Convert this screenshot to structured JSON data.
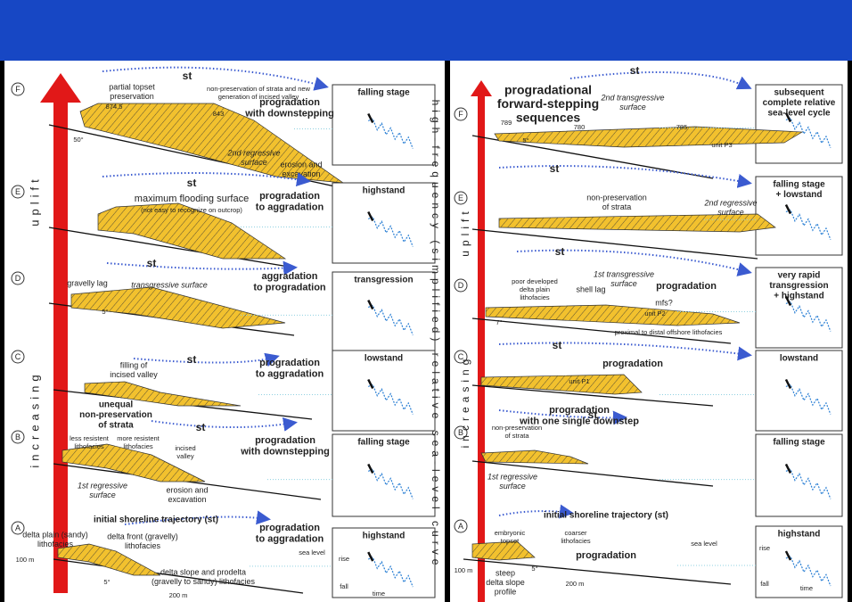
{
  "left_panel": {
    "vertical_label": "high-frequency (simplified) relative sea-level curve",
    "uplift_label": [
      "increasing",
      "uplift"
    ],
    "stages": [
      {
        "letter": "F",
        "box": [
          "falling stage"
        ],
        "process": [
          "progradation",
          "with downstepping"
        ],
        "notes": [
          [
            "st"
          ],
          [
            "partial topset",
            "preservation"
          ],
          [
            "non-preservation of strata and new",
            "generation of incised valley"
          ],
          [
            "874.5"
          ],
          [
            "843"
          ],
          [
            "50°"
          ],
          [
            "2nd regressive",
            "surface"
          ],
          [
            "erosion and",
            "excavation"
          ]
        ]
      },
      {
        "letter": "E",
        "box": [
          "highstand"
        ],
        "process": [
          "progradation",
          "to aggradation"
        ],
        "notes": [
          [
            "st"
          ],
          [
            "maximum flooding surface"
          ],
          [
            "(not easy to recognize on outcrop)"
          ]
        ]
      },
      {
        "letter": "D",
        "box": [
          "transgression"
        ],
        "process": [
          "aggradation",
          "to progradation"
        ],
        "notes": [
          [
            "st"
          ],
          [
            "gravelly lag"
          ],
          [
            "transgressive surface"
          ],
          [
            "5°"
          ]
        ]
      },
      {
        "letter": "C",
        "box": [
          "lowstand"
        ],
        "process": [
          "progradation",
          "to aggradation"
        ],
        "notes": [
          [
            "st"
          ],
          [
            "filling of",
            "incised valley"
          ]
        ]
      },
      {
        "letter": "B",
        "box": [
          "falling stage"
        ],
        "process": [
          "progradation",
          "with downstepping"
        ],
        "notes": [
          [
            "unequal",
            "non-preservation",
            "of strata"
          ],
          [
            "st"
          ],
          [
            "less resistent",
            "lithofacies"
          ],
          [
            "more resistent",
            "lithofacies"
          ],
          [
            "incised",
            "valley"
          ],
          [
            "1st regressive",
            "surface"
          ],
          [
            "erosion and",
            "excavation"
          ]
        ]
      },
      {
        "letter": "A",
        "box": [
          "highstand"
        ],
        "process": [
          "progradation",
          "to aggradation"
        ],
        "notes": [
          [
            "initial shoreline trajectory (st)"
          ],
          [
            "delta plain (sandy)",
            "lithofacies"
          ],
          [
            "delta front (gravelly)",
            "lithofacies"
          ],
          [
            "delta slope and prodelta",
            "(gravelly to sandy) lithofacies"
          ],
          [
            "sea level"
          ],
          [
            "100 m"
          ],
          [
            "5°"
          ],
          [
            "200 m"
          ],
          [
            "rise"
          ],
          [
            "fall"
          ],
          [
            "time"
          ]
        ]
      }
    ]
  },
  "right_panel": {
    "uplift_label": [
      "increasing",
      "uplift"
    ],
    "stages": [
      {
        "letter": "F",
        "box": [
          "subsequent",
          "complete relative",
          "sea-level cycle"
        ],
        "process": [
          "progradational",
          "forward-stepping",
          "sequences"
        ],
        "notes": [
          [
            "st"
          ],
          [
            "2nd transgressive",
            "surface"
          ],
          [
            "789"
          ],
          [
            "780"
          ],
          [
            "785"
          ],
          [
            "unit P3"
          ],
          [
            "5°"
          ]
        ]
      },
      {
        "letter": "E",
        "box": [
          "falling stage",
          "+ lowstand"
        ],
        "notes": [
          [
            "st"
          ],
          [
            "non-preservation",
            "of strata"
          ],
          [
            "2nd regressive",
            "surface"
          ]
        ]
      },
      {
        "letter": "D",
        "box": [
          "very rapid",
          "transgression",
          "+ highstand"
        ],
        "process": [
          "progradation"
        ],
        "notes": [
          [
            "st"
          ],
          [
            "1st transgressive",
            "surface"
          ],
          [
            "poor developed",
            "delta plain",
            "lithofacies"
          ],
          [
            "shell lag"
          ],
          [
            "mfs?"
          ],
          [
            "unit P2"
          ],
          [
            "proximal to distal offshore lithofacies"
          ],
          [
            "7°"
          ]
        ]
      },
      {
        "letter": "C",
        "box": [
          "lowstand"
        ],
        "process": [
          "progradation"
        ],
        "notes": [
          [
            "st"
          ],
          [
            "unit P1"
          ]
        ]
      },
      {
        "letter": "B",
        "box": [
          "falling stage"
        ],
        "process": [
          "progradation",
          "with one single downstep"
        ],
        "notes": [
          [
            "st"
          ],
          [
            "non-preservation",
            "of strata"
          ],
          [
            "1st regressive",
            "surface"
          ]
        ]
      },
      {
        "letter": "A",
        "box": [
          "highstand"
        ],
        "process": [
          "progradation"
        ],
        "notes": [
          [
            "initial shoreline trajectory (st)"
          ],
          [
            "embryonic",
            "topset"
          ],
          [
            "coarser",
            "lithofacies"
          ],
          [
            "sea level"
          ],
          [
            "steep",
            "delta slope",
            "profile"
          ],
          [
            "100 m"
          ],
          [
            "5°"
          ],
          [
            "200 m"
          ],
          [
            "rise"
          ],
          [
            "fall"
          ],
          [
            "time"
          ]
        ]
      }
    ]
  }
}
